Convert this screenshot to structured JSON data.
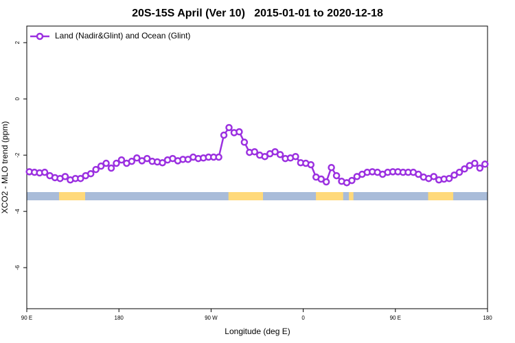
{
  "chart_data": {
    "type": "line",
    "title": "20S-15S April (Ver 10)   2015-01-01 to 2020-12-18",
    "x_label": "Longitude (deg E)",
    "y_label": "XCO2 - MLO trend (ppm)",
    "xlim": [
      90,
      540
    ],
    "xticks": [
      {
        "value": 90,
        "label": "90 E"
      },
      180,
      {
        "value": 270,
        "label": "90 W"
      },
      {
        "value": 360,
        "label": "0"
      },
      {
        "value": 450,
        "label": "90 E"
      },
      {
        "value": 540,
        "label": "180"
      }
    ],
    "ylim": [
      -7.46,
      2.59
    ],
    "yticks": [
      -6,
      -4,
      -2,
      0,
      2
    ],
    "legend": "top-left",
    "land_color": "#ffd97a",
    "ocean_color": "#a9bcd9",
    "land": [
      [
        121.5,
        147
      ],
      [
        287,
        320.7
      ],
      [
        372.4,
        399
      ],
      [
        404.6,
        409
      ],
      [
        482,
        506.5
      ]
    ],
    "x": [
      92.5,
      97.5,
      102.5,
      107.5,
      112.5,
      117.5,
      122.5,
      127.5,
      132.5,
      137.5,
      142.5,
      147.5,
      152.5,
      157.5,
      162.5,
      167.5,
      172.5,
      177.5,
      182.5,
      187.5,
      192.5,
      197.5,
      202.5,
      207.5,
      212.5,
      217.5,
      222.5,
      227.5,
      232.5,
      237.5,
      242.5,
      247.5,
      252.5,
      257.5,
      262.5,
      267.5,
      272.5,
      277.5,
      282.5,
      287.5,
      292.5,
      297.5,
      302.5,
      307.5,
      312.5,
      317.5,
      322.5,
      327.5,
      332.5,
      337.5,
      342.5,
      347.5,
      352.5,
      357.5,
      362.5,
      367.5,
      372.5,
      377.5,
      382.5,
      387.5,
      392.5,
      397.5,
      402.5,
      407.5,
      412.5,
      417.5,
      422.5,
      427.5,
      432.5,
      437.5,
      442.5,
      447.5,
      452.5,
      457.5,
      462.5,
      467.5,
      472.5,
      477.5,
      482.5,
      487.5,
      492.5,
      497.5,
      502.5,
      507.5,
      512.5,
      517.5,
      522.5,
      527.5,
      532.5,
      537.5
    ],
    "series": [
      {
        "name": "Land (Nadir&Glint) and Ocean (Glint)",
        "color": "#9b30e0",
        "values": [
          -2.59,
          -2.61,
          -2.63,
          -2.61,
          -2.73,
          -2.8,
          -2.83,
          -2.76,
          -2.88,
          -2.83,
          -2.83,
          -2.73,
          -2.66,
          -2.51,
          -2.39,
          -2.29,
          -2.46,
          -2.29,
          -2.17,
          -2.29,
          -2.22,
          -2.1,
          -2.2,
          -2.12,
          -2.22,
          -2.24,
          -2.27,
          -2.17,
          -2.12,
          -2.2,
          -2.15,
          -2.15,
          -2.07,
          -2.12,
          -2.1,
          -2.07,
          -2.07,
          -2.07,
          -1.29,
          -1.02,
          -1.2,
          -1.17,
          -1.54,
          -1.9,
          -1.88,
          -2.0,
          -2.05,
          -1.95,
          -1.88,
          -1.98,
          -2.12,
          -2.1,
          -2.05,
          -2.27,
          -2.29,
          -2.34,
          -2.78,
          -2.85,
          -2.95,
          -2.44,
          -2.73,
          -2.93,
          -2.98,
          -2.9,
          -2.76,
          -2.68,
          -2.61,
          -2.59,
          -2.61,
          -2.68,
          -2.61,
          -2.59,
          -2.59,
          -2.61,
          -2.61,
          -2.61,
          -2.68,
          -2.78,
          -2.83,
          -2.76,
          -2.88,
          -2.85,
          -2.83,
          -2.71,
          -2.61,
          -2.49,
          -2.37,
          -2.29,
          -2.46,
          -2.32
        ]
      }
    ]
  }
}
